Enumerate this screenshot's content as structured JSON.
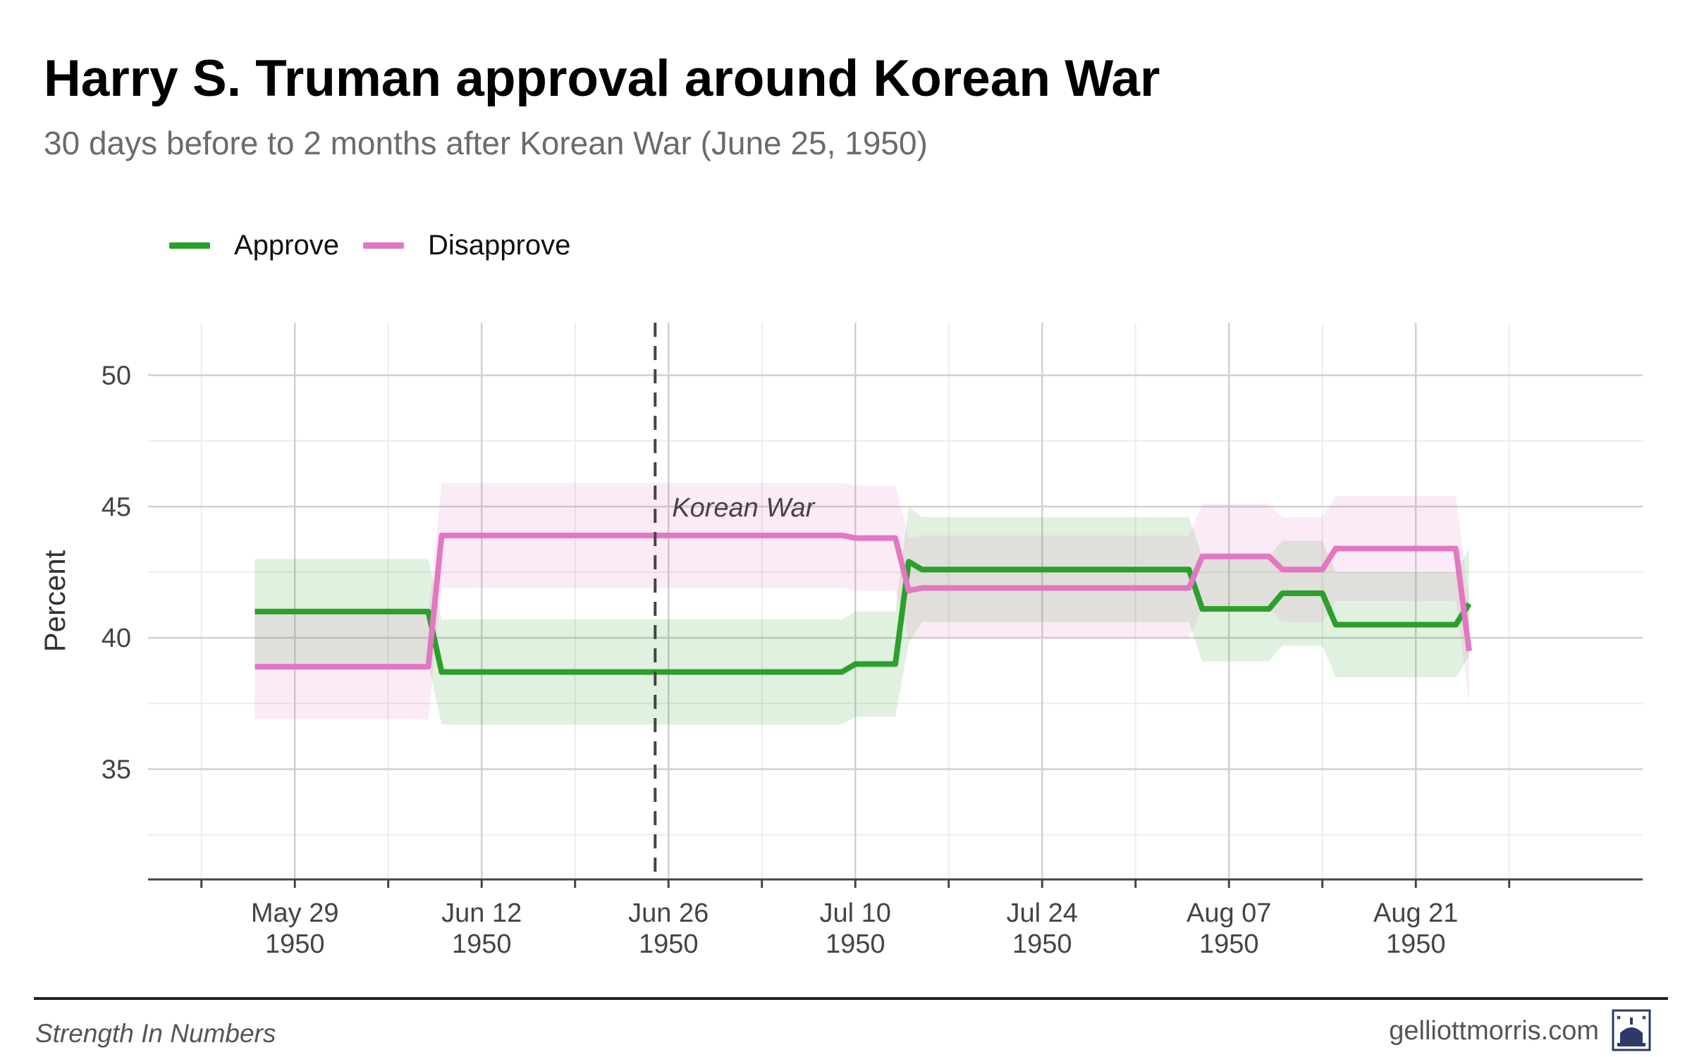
{
  "chart_data": {
    "type": "line",
    "title": "Harry S. Truman approval around Korean War",
    "subtitle": "30 days before to 2 months after Korean War (June 25, 1950)",
    "xlabel": "",
    "ylabel": "Percent",
    "ylim": [
      30.8,
      52
    ],
    "yticks": [
      35,
      40,
      45,
      50
    ],
    "xlim_day_offset": [
      -11,
      101
    ],
    "xticks": [
      {
        "offset": 0,
        "month": "May 29",
        "year": "1950"
      },
      {
        "offset": 14,
        "month": "Jun 12",
        "year": "1950"
      },
      {
        "offset": 28,
        "month": "Jun 26",
        "year": "1950"
      },
      {
        "offset": 42,
        "month": "Jul 10",
        "year": "1950"
      },
      {
        "offset": 56,
        "month": "Jul 24",
        "year": "1950"
      },
      {
        "offset": 70,
        "month": "Aug 07",
        "year": "1950"
      },
      {
        "offset": 84,
        "month": "Aug 21",
        "year": "1950"
      }
    ],
    "x_axis_note": "x values are days after May 29, 1950",
    "legend": {
      "position": "top-left"
    },
    "annotation": {
      "label": "Korean War",
      "x_offset": 27
    },
    "series": [
      {
        "name": "Approve",
        "color": "#2ca02c",
        "band_color": "#2ca02c",
        "points": [
          {
            "x": -3,
            "y": 41.0,
            "lo": 39.0,
            "hi": 43.0
          },
          {
            "x": 10,
            "y": 41.0,
            "lo": 39.0,
            "hi": 43.0
          },
          {
            "x": 11,
            "y": 38.7,
            "lo": 36.7,
            "hi": 40.7
          },
          {
            "x": 41,
            "y": 38.7,
            "lo": 36.7,
            "hi": 40.7
          },
          {
            "x": 42,
            "y": 39.0,
            "lo": 37.0,
            "hi": 41.0
          },
          {
            "x": 45,
            "y": 39.0,
            "lo": 37.0,
            "hi": 41.0
          },
          {
            "x": 46,
            "y": 42.9,
            "lo": 39.8,
            "hi": 45.0
          },
          {
            "x": 47,
            "y": 42.6,
            "lo": 40.6,
            "hi": 44.6
          },
          {
            "x": 67,
            "y": 42.6,
            "lo": 40.6,
            "hi": 44.6
          },
          {
            "x": 68,
            "y": 41.1,
            "lo": 39.1,
            "hi": 43.1
          },
          {
            "x": 73,
            "y": 41.1,
            "lo": 39.1,
            "hi": 43.1
          },
          {
            "x": 74,
            "y": 41.7,
            "lo": 39.7,
            "hi": 43.7
          },
          {
            "x": 77,
            "y": 41.7,
            "lo": 39.7,
            "hi": 43.7
          },
          {
            "x": 78,
            "y": 40.5,
            "lo": 38.5,
            "hi": 42.5
          },
          {
            "x": 87,
            "y": 40.5,
            "lo": 38.5,
            "hi": 42.5
          },
          {
            "x": 88,
            "y": 41.3,
            "lo": 39.3,
            "hi": 43.4
          }
        ]
      },
      {
        "name": "Disapprove",
        "color": "#e377c2",
        "band_color": "#e377c2",
        "points": [
          {
            "x": -3,
            "y": 38.9,
            "lo": 36.9,
            "hi": 40.9
          },
          {
            "x": 10,
            "y": 38.9,
            "lo": 36.9,
            "hi": 40.9
          },
          {
            "x": 11,
            "y": 43.9,
            "lo": 41.9,
            "hi": 45.9
          },
          {
            "x": 41,
            "y": 43.9,
            "lo": 41.9,
            "hi": 45.9
          },
          {
            "x": 42,
            "y": 43.8,
            "lo": 41.8,
            "hi": 45.8
          },
          {
            "x": 45,
            "y": 43.8,
            "lo": 41.8,
            "hi": 45.8
          },
          {
            "x": 46,
            "y": 41.8,
            "lo": 40.0,
            "hi": 43.8
          },
          {
            "x": 47,
            "y": 41.9,
            "lo": 40.0,
            "hi": 43.9
          },
          {
            "x": 67,
            "y": 41.9,
            "lo": 40.0,
            "hi": 43.9
          },
          {
            "x": 68,
            "y": 43.1,
            "lo": 41.1,
            "hi": 45.1
          },
          {
            "x": 73,
            "y": 43.1,
            "lo": 41.1,
            "hi": 45.1
          },
          {
            "x": 74,
            "y": 42.6,
            "lo": 40.6,
            "hi": 44.6
          },
          {
            "x": 77,
            "y": 42.6,
            "lo": 40.6,
            "hi": 44.6
          },
          {
            "x": 78,
            "y": 43.4,
            "lo": 41.4,
            "hi": 45.4
          },
          {
            "x": 87,
            "y": 43.4,
            "lo": 41.4,
            "hi": 45.4
          },
          {
            "x": 88,
            "y": 39.5,
            "lo": 37.5,
            "hi": 41.5
          }
        ]
      }
    ]
  },
  "footer": {
    "source": "Strength In Numbers",
    "site": "gelliottmorris.com"
  },
  "colors": {
    "grid_major": "#d0d0d0",
    "grid_minor": "#ececec",
    "axis": "#444444",
    "tick_text": "#444444",
    "annotation_line": "#444444"
  }
}
